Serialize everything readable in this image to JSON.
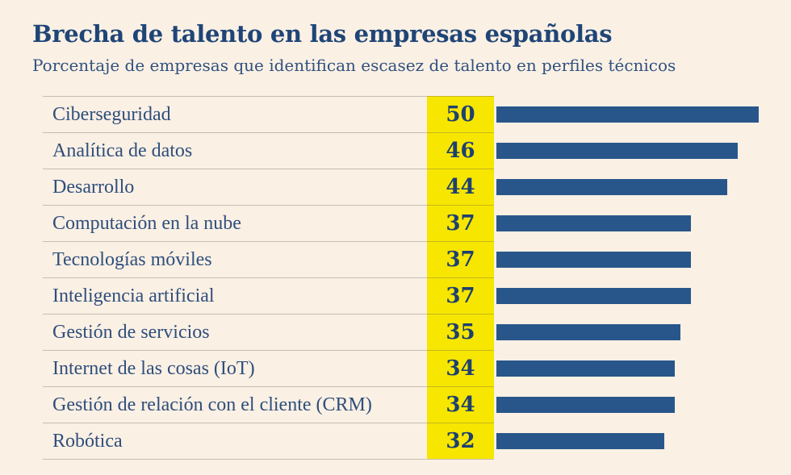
{
  "header": {
    "title": "Brecha de talento en las empresas españolas",
    "subtitle": "Porcentaje de empresas que identifican escasez de talento en perfiles técnicos"
  },
  "colors": {
    "background": "#FAF0E4",
    "title_text": "#1F4577",
    "label_text": "#2F4E7C",
    "bar": "#28568A",
    "value_cell_background": "#F7E600",
    "value_text": "#1E4070",
    "separator_line": "#D2C9BC"
  },
  "chart_data": {
    "type": "bar",
    "orientation": "horizontal",
    "title": "Brecha de talento en las empresas españolas",
    "subtitle": "Porcentaje de empresas que identifican escasez de talento en perfiles técnicos",
    "categories": [
      "Ciberseguridad",
      "Analítica de datos",
      "Desarrollo",
      "Computación en la nube",
      "Tecnologías móviles",
      "Inteligencia artificial",
      "Gestión de servicios",
      "Internet de las cosas  (IoT)",
      "Gestión de relación con el cliente (CRM)",
      "Robótica"
    ],
    "values": [
      50,
      46,
      44,
      37,
      37,
      37,
      35,
      34,
      34,
      32
    ],
    "unit": "%",
    "xlabel": "",
    "ylabel": "",
    "xlim": [
      0,
      50
    ],
    "grid": false,
    "legend": false,
    "value_labels_shown": true,
    "value_label_style": "yellow-highlight-column"
  }
}
